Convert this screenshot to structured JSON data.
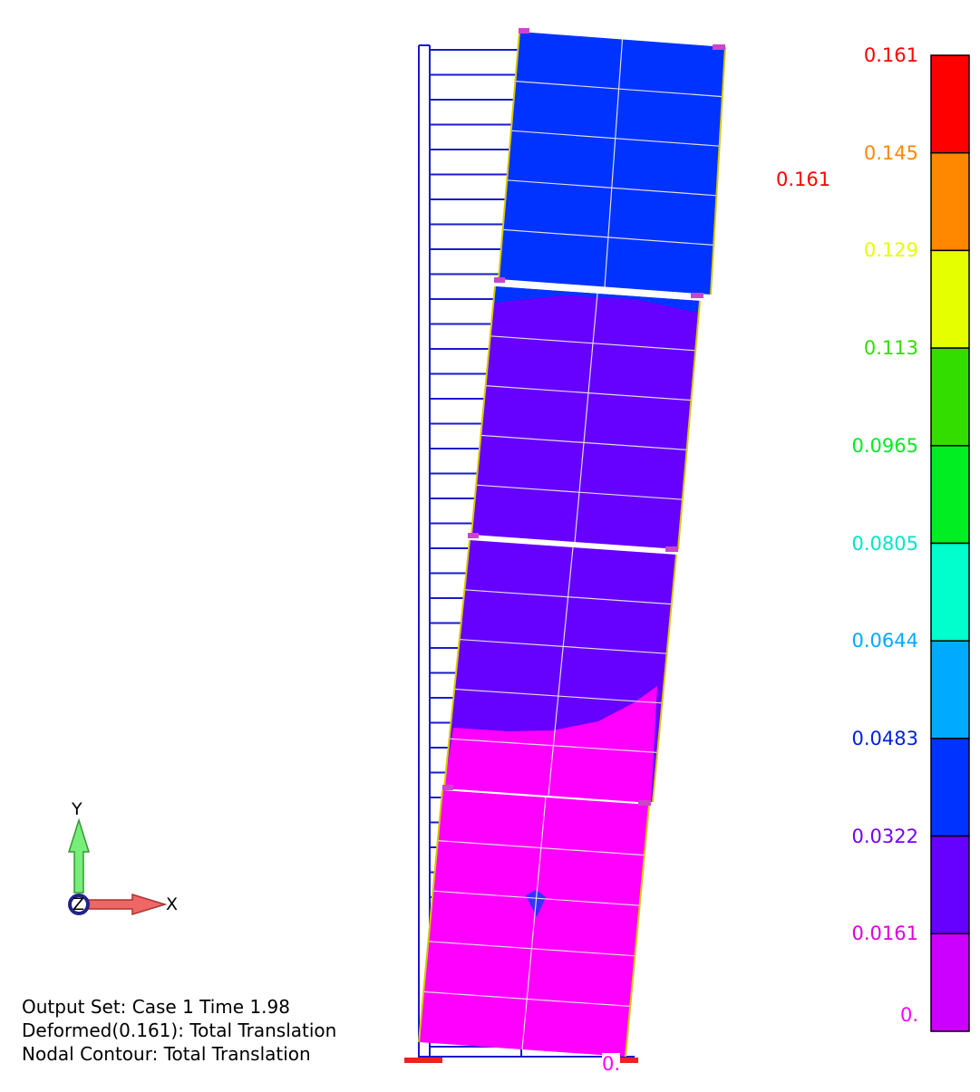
{
  "legend": {
    "values": [
      "0.161",
      "0.145",
      "0.129",
      "0.113",
      "0.0965",
      "0.0805",
      "0.0644",
      "0.0483",
      "0.0322",
      "0.0161",
      "0."
    ],
    "colors": [
      "#ff0000",
      "#ff8800",
      "#e6ff00",
      "#33dd00",
      "#00ee22",
      "#00ffcc",
      "#00aaff",
      "#0033ff",
      "#6600ff",
      "#cc00ff",
      "#ff00ff"
    ],
    "text_colors": [
      "#ff0000",
      "#ff8800",
      "#e6ff00",
      "#33dd00",
      "#00ee22",
      "#00e6c8",
      "#00aaff",
      "#0022dd",
      "#7700ff",
      "#dd00dd",
      "#ff00ff"
    ]
  },
  "annotations": {
    "max_value": "0.161",
    "min_value": "0."
  },
  "triad": {
    "y": "Y",
    "x": "X",
    "z": "Z"
  },
  "info": {
    "line1": "Output Set: Case 1 Time 1.98",
    "line2": "Deformed(0.161): Total Translation",
    "line3": "Nodal Contour: Total Translation"
  },
  "panel_colors": {
    "top": "#0033ff",
    "violet": "#6600ff",
    "magenta": "#ff00ff",
    "frame": "#1a1acc"
  }
}
